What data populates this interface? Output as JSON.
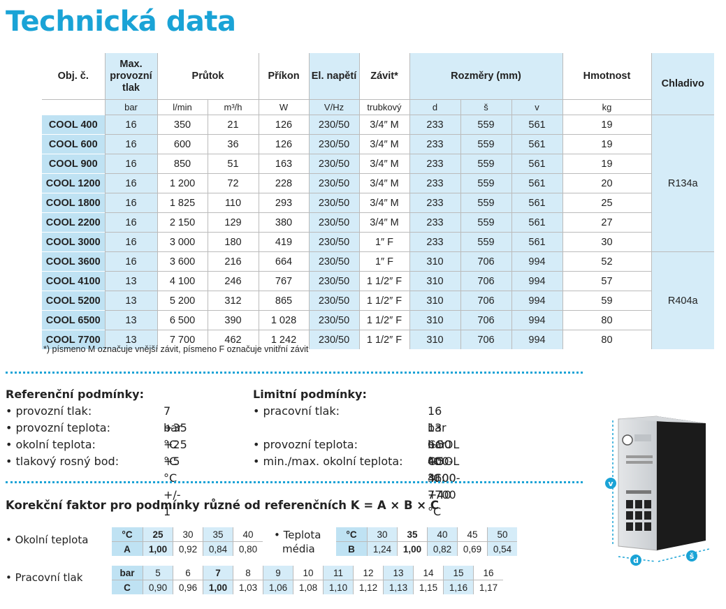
{
  "title": "Technická data",
  "spec": {
    "headers": {
      "model": "Obj. č.",
      "pressure": "Max. provozní tlak",
      "flow": "Průtok",
      "power": "Příkon",
      "voltage": "El. napětí",
      "thread": "Závit*",
      "dims": "Rozměry (mm)",
      "weight": "Hmotnost",
      "coolant": "Chladivo"
    },
    "units": [
      "bar",
      "l/min",
      "m³/h",
      "W",
      "V/Hz",
      "trubkový",
      "d",
      "š",
      "v",
      "kg"
    ],
    "rows": [
      [
        "COOL 400",
        "16",
        "350",
        "21",
        "126",
        "230/50",
        "3/4″ M",
        "233",
        "559",
        "561",
        "19"
      ],
      [
        "COOL 600",
        "16",
        "600",
        "36",
        "126",
        "230/50",
        "3/4″ M",
        "233",
        "559",
        "561",
        "19"
      ],
      [
        "COOL 900",
        "16",
        "850",
        "51",
        "163",
        "230/50",
        "3/4″ M",
        "233",
        "559",
        "561",
        "19"
      ],
      [
        "COOL 1200",
        "16",
        "1 200",
        "72",
        "228",
        "230/50",
        "3/4″ M",
        "233",
        "559",
        "561",
        "20"
      ],
      [
        "COOL 1800",
        "16",
        "1 825",
        "110",
        "293",
        "230/50",
        "3/4″ M",
        "233",
        "559",
        "561",
        "25"
      ],
      [
        "COOL 2200",
        "16",
        "2 150",
        "129",
        "380",
        "230/50",
        "3/4″ M",
        "233",
        "559",
        "561",
        "27"
      ],
      [
        "COOL 3000",
        "16",
        "3 000",
        "180",
        "419",
        "230/50",
        "1″ F",
        "233",
        "559",
        "561",
        "30"
      ],
      [
        "COOL 3600",
        "16",
        "3 600",
        "216",
        "664",
        "230/50",
        "1″ F",
        "310",
        "706",
        "994",
        "52"
      ],
      [
        "COOL 4100",
        "13",
        "4 100",
        "246",
        "767",
        "230/50",
        "1 1/2″ F",
        "310",
        "706",
        "994",
        "57"
      ],
      [
        "COOL 5200",
        "13",
        "5 200",
        "312",
        "865",
        "230/50",
        "1 1/2″ F",
        "310",
        "706",
        "994",
        "59"
      ],
      [
        "COOL 6500",
        "13",
        "6 500",
        "390",
        "1 028",
        "230/50",
        "1 1/2″ F",
        "310",
        "706",
        "994",
        "80"
      ],
      [
        "COOL 7700",
        "13",
        "7 700",
        "462",
        "1 242",
        "230/50",
        "1 1/2″ F",
        "310",
        "706",
        "994",
        "80"
      ]
    ],
    "coolants": [
      "R134a",
      "R404a"
    ]
  },
  "footnote": "*) písmeno M označuje vnější závit, písmeno F označuje vnitřní závit",
  "reference": {
    "heading": "Referenční podmínky:",
    "items": [
      {
        "label": "• provozní tlak:",
        "value": "7 bar"
      },
      {
        "label": "• provozní teplota:",
        "value": "+35 °C"
      },
      {
        "label": "• okolní teplota:",
        "value": "+25 °C"
      },
      {
        "label": "• tlakový rosný bod:",
        "value": "+5 °C +/- 1"
      }
    ]
  },
  "limits": {
    "heading": "Limitní podmínky:",
    "items": [
      {
        "label": "• pracovní tlak:",
        "value": "16 bar COOL 400-3600"
      },
      {
        "label": "",
        "value": "13 bar COOL 4100-7700"
      },
      {
        "label": "• provozní teplota:",
        "value": "+50 °C"
      },
      {
        "label": "• min./max. okolní teplota:",
        "value": "+5 °C; +40 °C"
      }
    ]
  },
  "correction": {
    "title": "Korekční faktor pro podmínky různé od referenčních K = A × B × C",
    "ambient_label": "• Okolní teplota",
    "ambient_unit": "°C",
    "ambient_temps": [
      "25",
      "30",
      "35",
      "40"
    ],
    "a_label": "A",
    "a_values": [
      "1,00",
      "0,92",
      "0,84",
      "0,80"
    ],
    "medium_label_1": "• Teplota",
    "medium_label_2": "média",
    "medium_unit": "°C",
    "medium_temps": [
      "30",
      "35",
      "40",
      "45",
      "50"
    ],
    "b_label": "B",
    "b_values": [
      "1,24",
      "1,00",
      "0,82",
      "0,69",
      "0,54"
    ],
    "pressure_label": "• Pracovní tlak",
    "pressure_unit": "bar",
    "pressures": [
      "5",
      "6",
      "7",
      "8",
      "9",
      "10",
      "11",
      "12",
      "13",
      "14",
      "15",
      "16"
    ],
    "c_label": "C",
    "c_values": [
      "0,90",
      "0,96",
      "1,00",
      "1,03",
      "1,06",
      "1,08",
      "1,10",
      "1,12",
      "1,13",
      "1,15",
      "1,16",
      "1,17"
    ]
  },
  "image_labels": {
    "v": "v",
    "d": "d",
    "s": "š"
  },
  "colors": {
    "accent": "#1aa3d6",
    "header_blue": "#bfe2f3",
    "light_blue": "#d5ecf8"
  }
}
